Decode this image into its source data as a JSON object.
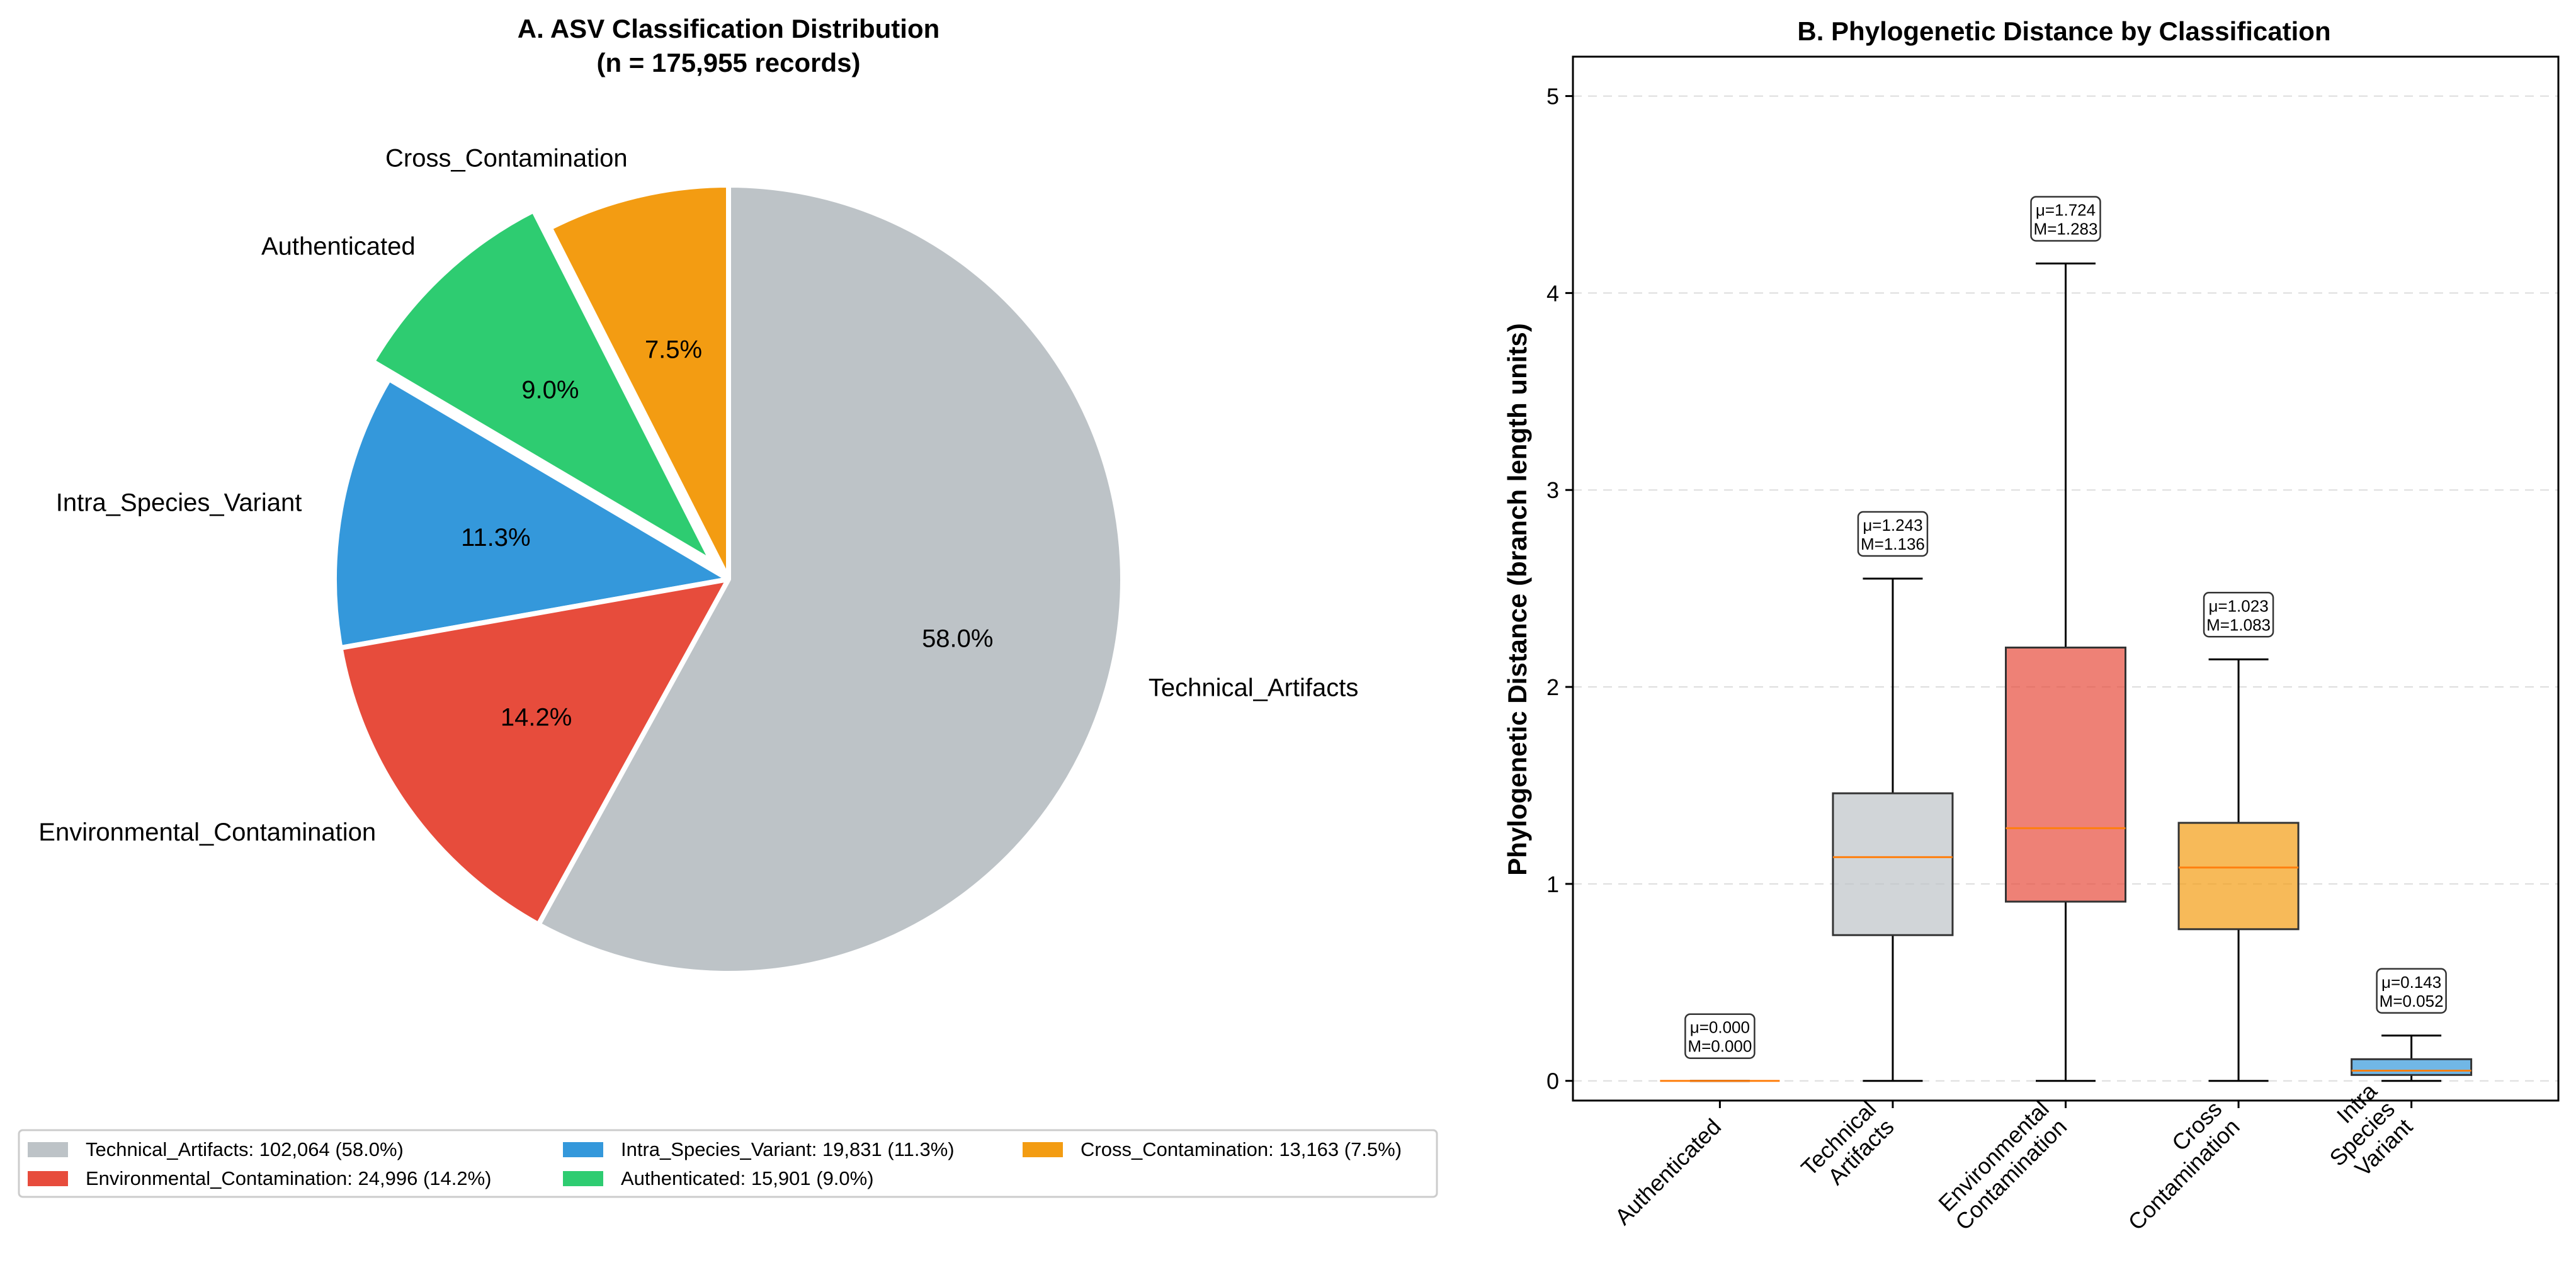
{
  "figure": {
    "background": "#ffffff"
  },
  "chart_data": [
    {
      "type": "pie",
      "title_line1": "A. ASV Classification Distribution",
      "title_line2": "(n = 175,955 records)",
      "start_angle_deg": 90,
      "direction": "counterclockwise",
      "slices": [
        {
          "label": "Cross_Contamination",
          "value": 13163,
          "pct_label": "7.5%",
          "color": "#f39c12",
          "exploded": false,
          "legend_label": "Cross_Contamination: 13,163 (7.5%)"
        },
        {
          "label": "Authenticated",
          "value": 15901,
          "pct_label": "9.0%",
          "color": "#2ecc71",
          "exploded": true,
          "legend_label": "Authenticated: 15,901 (9.0%)"
        },
        {
          "label": "Intra_Species_Variant",
          "value": 19831,
          "pct_label": "11.3%",
          "color": "#3498db",
          "exploded": false,
          "legend_label": "Intra_Species_Variant: 19,831 (11.3%)"
        },
        {
          "label": "Environmental_Contamination",
          "value": 24996,
          "pct_label": "14.2%",
          "color": "#e74c3c",
          "exploded": false,
          "legend_label": "Environmental_Contamination: 24,996 (14.2%)"
        },
        {
          "label": "Technical_Artifacts",
          "value": 102064,
          "pct_label": "58.0%",
          "color": "#bdc3c7",
          "exploded": false,
          "legend_label": "Technical_Artifacts: 102,064 (58.0%)"
        }
      ],
      "legend_order": [
        "Technical_Artifacts",
        "Environmental_Contamination",
        "Intra_Species_Variant",
        "Authenticated",
        "Cross_Contamination"
      ],
      "legend_columns": 3,
      "legend_placement": "bottom"
    },
    {
      "type": "box",
      "title": "B. Phylogenetic Distance by Classification",
      "ylabel": "Phylogenetic Distance (branch length units)",
      "ylim": [
        -0.1,
        5.2
      ],
      "yticks": [
        0,
        1,
        2,
        3,
        4,
        5
      ],
      "ytick_labels": [
        "0",
        "1",
        "2",
        "3",
        "4",
        "5"
      ],
      "grid": "y-dashed",
      "median_color": "#ff7f0e",
      "categories": [
        {
          "label_lines": [
            "Authenticated"
          ],
          "color": "#2ecc71",
          "whisker_low": 0.0,
          "q1": 0.0,
          "median": 0.0,
          "q3": 0.0,
          "whisker_high": 0.0,
          "annot_mean": "μ=0.000",
          "annot_median": "M=0.000"
        },
        {
          "label_lines": [
            "Technical",
            "Artifacts"
          ],
          "color": "#bdc3c7",
          "whisker_low": 0.0,
          "q1": 0.74,
          "median": 1.136,
          "q3": 1.46,
          "whisker_high": 2.55,
          "annot_mean": "μ=1.243",
          "annot_median": "M=1.136"
        },
        {
          "label_lines": [
            "Environmental",
            "Contamination"
          ],
          "color": "#e74c3c",
          "whisker_low": 0.0,
          "q1": 0.91,
          "median": 1.283,
          "q3": 2.2,
          "whisker_high": 4.15,
          "annot_mean": "μ=1.724",
          "annot_median": "M=1.283"
        },
        {
          "label_lines": [
            "Cross",
            "Contamination"
          ],
          "color": "#f39c12",
          "whisker_low": 0.0,
          "q1": 0.77,
          "median": 1.083,
          "q3": 1.31,
          "whisker_high": 2.14,
          "annot_mean": "μ=1.023",
          "annot_median": "M=1.083"
        },
        {
          "label_lines": [
            "Intra",
            "Species",
            "Variant"
          ],
          "color": "#3498db",
          "whisker_low": 0.0,
          "q1": 0.03,
          "median": 0.052,
          "q3": 0.11,
          "whisker_high": 0.23,
          "annot_mean": "μ=0.143",
          "annot_median": "M=0.052"
        }
      ]
    }
  ]
}
